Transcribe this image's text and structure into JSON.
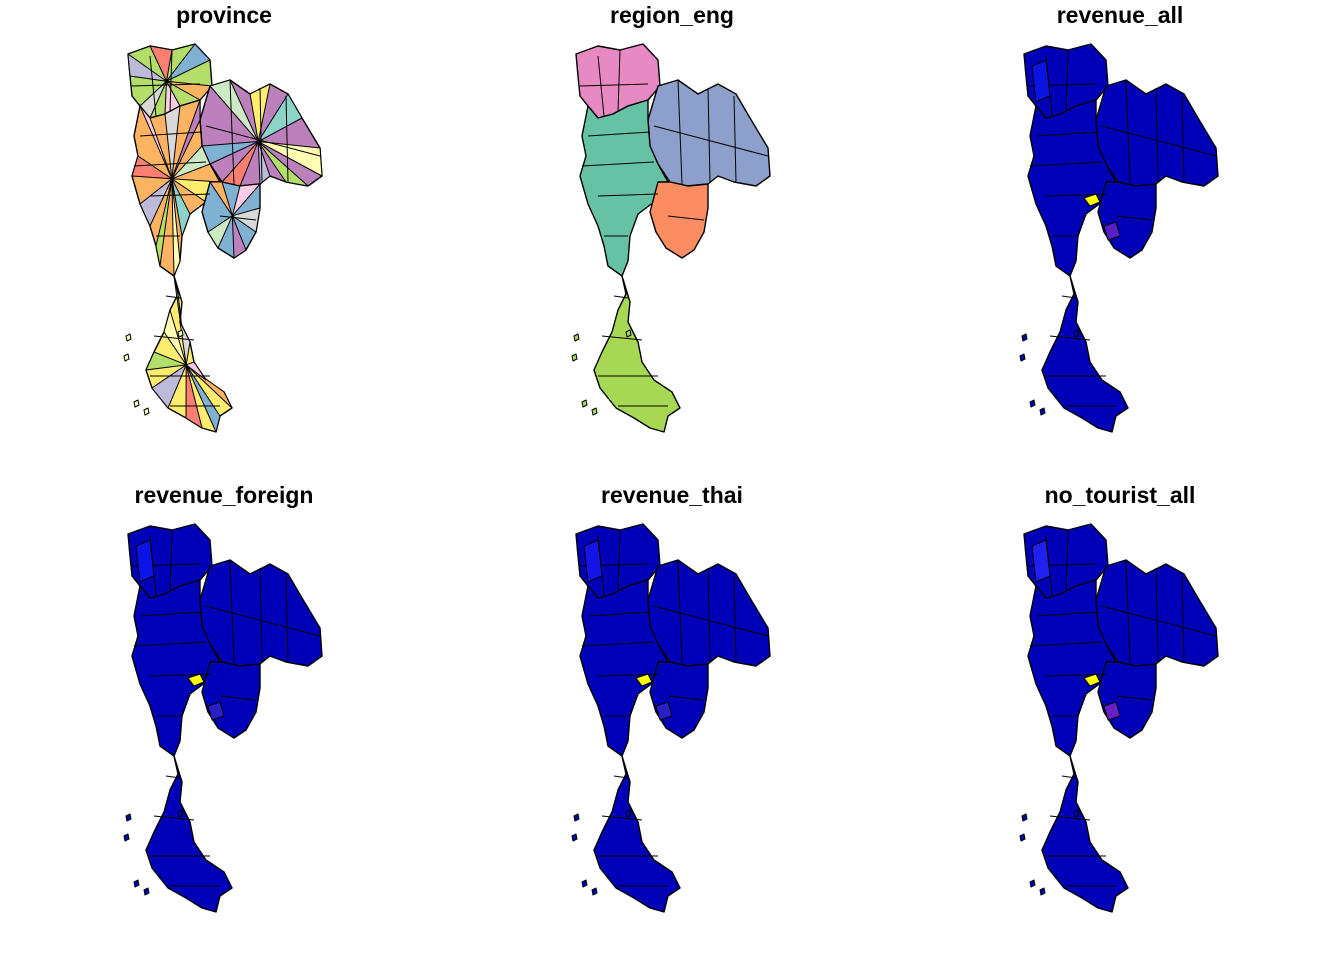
{
  "panels": [
    {
      "title": "province",
      "style": "categorical",
      "fills": [
        "#B3DE69",
        "#BEBADA",
        "#FB8072",
        "#80B1D3",
        "#FDB462",
        "#FCCDE5",
        "#D9D9D9",
        "#BC80BD",
        "#CCEBC5",
        "#FFED6F",
        "#8DD3C7",
        "#FFFFB3"
      ]
    },
    {
      "title": "region_eng",
      "style": "region",
      "fills": {
        "north": "#E78AC3",
        "northeast": "#8DA0CB",
        "central": "#66C2A5",
        "east": "#FC8D62",
        "south": "#A6D854"
      }
    },
    {
      "title": "revenue_all",
      "style": "continuous",
      "fills": {
        "base": "#0000B8",
        "highlight_a": "#0A14E0",
        "highlight_b": "#5A1EC8",
        "bangkok": "#FFFF00"
      }
    },
    {
      "title": "revenue_foreign",
      "style": "continuous",
      "fills": {
        "base": "#0000B8",
        "highlight_a": "#0A14E8",
        "highlight_b": "#2A1EC8",
        "bangkok": "#FFFF00"
      }
    },
    {
      "title": "revenue_thai",
      "style": "continuous",
      "fills": {
        "base": "#0000B8",
        "highlight_a": "#1414E6",
        "highlight_b": "#2A1EC8",
        "bangkok": "#FFFF00"
      }
    },
    {
      "title": "no_tourist_all",
      "style": "continuous",
      "fills": {
        "base": "#0000B8",
        "highlight_a": "#2020F0",
        "highlight_b": "#6A1EC8",
        "bangkok": "#FFFF00"
      }
    }
  ],
  "colors": {
    "border": "#000000",
    "background": "#FFFFFF"
  }
}
